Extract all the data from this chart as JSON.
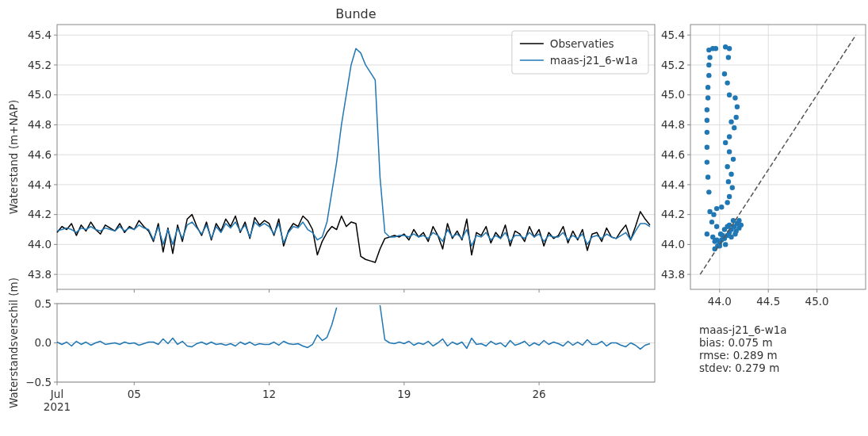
{
  "chart_data": [
    {
      "type": "line",
      "title": "Bunde",
      "ylabel": "Waterstand (m+NAP)",
      "legend": "top right",
      "grid": "y",
      "tick_labels": "y",
      "xlim": [
        "2021-07-01",
        "2021-08-01"
      ],
      "xticks": [
        {
          "value": "2021-07-01",
          "label": null
        },
        {
          "value": "2021-07-05",
          "label": null
        },
        {
          "value": "2021-07-12",
          "label": null
        },
        {
          "value": "2021-07-19",
          "label": null
        },
        {
          "value": "2021-07-26",
          "label": null
        }
      ],
      "ylim": [
        43.7,
        45.47
      ],
      "yticks": [
        43.8,
        {
          "value": 44.0,
          "label": "44.0"
        },
        44.2,
        44.4,
        44.6,
        44.8,
        {
          "value": 45.0,
          "label": "45.0"
        },
        45.2,
        45.4
      ],
      "x": [
        "2021-07-01T00:00",
        "2021-07-01T06:00",
        "2021-07-01T12:00",
        "2021-07-01T18:00",
        "2021-07-02T00:00",
        "2021-07-02T06:00",
        "2021-07-02T12:00",
        "2021-07-02T18:00",
        "2021-07-03T00:00",
        "2021-07-03T06:00",
        "2021-07-03T12:00",
        "2021-07-03T18:00",
        "2021-07-04T00:00",
        "2021-07-04T06:00",
        "2021-07-04T12:00",
        "2021-07-04T18:00",
        "2021-07-05T00:00",
        "2021-07-05T06:00",
        "2021-07-05T12:00",
        "2021-07-05T18:00",
        "2021-07-06T00:00",
        "2021-07-06T06:00",
        "2021-07-06T12:00",
        "2021-07-06T18:00",
        "2021-07-07T00:00",
        "2021-07-07T06:00",
        "2021-07-07T12:00",
        "2021-07-07T18:00",
        "2021-07-08T00:00",
        "2021-07-08T06:00",
        "2021-07-08T12:00",
        "2021-07-08T18:00",
        "2021-07-09T00:00",
        "2021-07-09T06:00",
        "2021-07-09T12:00",
        "2021-07-09T18:00",
        "2021-07-10T00:00",
        "2021-07-10T06:00",
        "2021-07-10T12:00",
        "2021-07-10T18:00",
        "2021-07-11T00:00",
        "2021-07-11T06:00",
        "2021-07-11T12:00",
        "2021-07-11T18:00",
        "2021-07-12T00:00",
        "2021-07-12T06:00",
        "2021-07-12T12:00",
        "2021-07-12T18:00",
        "2021-07-13T00:00",
        "2021-07-13T06:00",
        "2021-07-13T12:00",
        "2021-07-13T18:00",
        "2021-07-14T00:00",
        "2021-07-14T06:00",
        "2021-07-14T12:00",
        "2021-07-14T18:00",
        "2021-07-15T00:00",
        "2021-07-15T06:00",
        "2021-07-15T12:00",
        "2021-07-15T18:00",
        "2021-07-16T00:00",
        "2021-07-16T06:00",
        "2021-07-16T12:00",
        "2021-07-16T18:00",
        "2021-07-17T00:00",
        "2021-07-17T06:00",
        "2021-07-17T12:00",
        "2021-07-17T18:00",
        "2021-07-18T00:00",
        "2021-07-18T06:00",
        "2021-07-18T12:00",
        "2021-07-18T18:00",
        "2021-07-19T00:00",
        "2021-07-19T06:00",
        "2021-07-19T12:00",
        "2021-07-19T18:00",
        "2021-07-20T00:00",
        "2021-07-20T06:00",
        "2021-07-20T12:00",
        "2021-07-20T18:00",
        "2021-07-21T00:00",
        "2021-07-21T06:00",
        "2021-07-21T12:00",
        "2021-07-21T18:00",
        "2021-07-22T00:00",
        "2021-07-22T06:00",
        "2021-07-22T12:00",
        "2021-07-22T18:00",
        "2021-07-23T00:00",
        "2021-07-23T06:00",
        "2021-07-23T12:00",
        "2021-07-23T18:00",
        "2021-07-24T00:00",
        "2021-07-24T06:00",
        "2021-07-24T12:00",
        "2021-07-24T18:00",
        "2021-07-25T00:00",
        "2021-07-25T06:00",
        "2021-07-25T12:00",
        "2021-07-25T18:00",
        "2021-07-26T00:00",
        "2021-07-26T06:00",
        "2021-07-26T12:00",
        "2021-07-26T18:00",
        "2021-07-27T00:00",
        "2021-07-27T06:00",
        "2021-07-27T12:00",
        "2021-07-27T18:00",
        "2021-07-28T00:00",
        "2021-07-28T06:00",
        "2021-07-28T12:00",
        "2021-07-28T18:00",
        "2021-07-29T00:00",
        "2021-07-29T06:00",
        "2021-07-29T12:00",
        "2021-07-29T18:00",
        "2021-07-30T00:00",
        "2021-07-30T06:00",
        "2021-07-30T12:00",
        "2021-07-30T18:00",
        "2021-07-31T00:00",
        "2021-07-31T06:00",
        "2021-07-31T12:00",
        "2021-07-31T18:00"
      ],
      "series": [
        {
          "name": "Observaties",
          "color": "#000000",
          "values": [
            44.08,
            44.12,
            44.1,
            44.14,
            44.06,
            44.13,
            44.09,
            44.15,
            44.1,
            44.07,
            44.13,
            44.11,
            44.09,
            44.14,
            44.08,
            44.12,
            44.1,
            44.16,
            44.12,
            44.09,
            44.02,
            44.14,
            43.95,
            44.11,
            43.94,
            44.13,
            44.02,
            44.17,
            44.2,
            44.12,
            44.06,
            44.15,
            44.03,
            44.14,
            44.09,
            44.17,
            44.12,
            44.19,
            44.08,
            44.15,
            44.04,
            44.18,
            44.13,
            44.16,
            44.14,
            44.06,
            44.17,
            43.99,
            44.09,
            44.14,
            44.12,
            44.19,
            44.16,
            44.1,
            43.93,
            44.02,
            44.08,
            44.12,
            44.1,
            44.19,
            44.12,
            44.15,
            44.14,
            43.92,
            43.9,
            43.89,
            43.88,
            43.97,
            44.04,
            44.05,
            44.06,
            44.05,
            44.07,
            44.03,
            44.1,
            44.05,
            44.08,
            44.02,
            44.12,
            44.06,
            43.97,
            44.14,
            44.04,
            44.09,
            44.03,
            44.17,
            43.93,
            44.08,
            44.06,
            44.12,
            44.01,
            44.08,
            44.04,
            44.13,
            43.99,
            44.09,
            44.07,
            44.02,
            44.12,
            44.05,
            44.1,
            43.99,
            44.08,
            44.04,
            44.06,
            44.12,
            44.01,
            44.09,
            44.03,
            44.1,
            43.96,
            44.07,
            44.08,
            44.02,
            44.11,
            44.05,
            44.04,
            44.09,
            44.13,
            44.03,
            44.12,
            44.22,
            44.17,
            44.13
          ]
        },
        {
          "name": "maas-j21_6-w1a",
          "color": "#1f77b4",
          "values": [
            44.09,
            44.1,
            44.11,
            44.1,
            44.08,
            44.11,
            44.1,
            44.12,
            44.1,
            44.09,
            44.11,
            44.1,
            44.09,
            44.12,
            44.09,
            44.11,
            44.1,
            44.13,
            44.11,
            44.1,
            44.03,
            44.12,
            44.0,
            44.1,
            44.0,
            44.11,
            44.04,
            44.13,
            44.15,
            44.11,
            44.07,
            44.13,
            44.04,
            44.12,
            44.08,
            44.14,
            44.11,
            44.15,
            44.09,
            44.13,
            44.05,
            44.15,
            44.12,
            44.14,
            44.12,
            44.07,
            44.14,
            44.01,
            44.08,
            44.12,
            44.11,
            44.15,
            44.1,
            44.08,
            44.03,
            44.05,
            44.15,
            44.35,
            44.55,
            44.8,
            45.0,
            45.2,
            45.31,
            45.28,
            45.2,
            45.15,
            45.1,
            44.45,
            44.08,
            44.05,
            44.05,
            44.06,
            44.06,
            44.05,
            44.07,
            44.05,
            44.06,
            44.04,
            44.08,
            44.06,
            44.02,
            44.1,
            44.05,
            44.07,
            44.04,
            44.1,
            43.99,
            44.06,
            44.05,
            44.08,
            44.03,
            44.06,
            44.04,
            44.08,
            44.02,
            44.06,
            44.06,
            44.04,
            44.08,
            44.05,
            44.07,
            44.02,
            44.06,
            44.05,
            44.05,
            44.08,
            44.03,
            44.06,
            44.04,
            44.07,
            44.0,
            44.05,
            44.06,
            44.04,
            44.07,
            44.05,
            44.04,
            44.06,
            44.08,
            44.03,
            44.09,
            44.14,
            44.14,
            44.12
          ]
        }
      ]
    },
    {
      "type": "line",
      "ylabel": "Waterstandsverschil (m)",
      "grid": "y",
      "xlim": [
        "2021-07-01",
        "2021-08-01"
      ],
      "xticks": [
        {
          "value": "2021-07-01",
          "label": "Jul\n2021"
        },
        {
          "value": "2021-07-05",
          "label": "05"
        },
        {
          "value": "2021-07-12",
          "label": "12"
        },
        {
          "value": "2021-07-19",
          "label": "19"
        },
        {
          "value": "2021-07-26",
          "label": "26"
        }
      ],
      "ylim": [
        -0.5,
        0.5
      ],
      "yticks": [
        {
          "value": -0.5,
          "label": "−0.5"
        },
        {
          "value": 0,
          "label": "0.0"
        },
        0.5
      ],
      "x": [
        "2021-07-01T00:00",
        "2021-07-01T06:00",
        "2021-07-01T12:00",
        "2021-07-01T18:00",
        "2021-07-02T00:00",
        "2021-07-02T06:00",
        "2021-07-02T12:00",
        "2021-07-02T18:00",
        "2021-07-03T00:00",
        "2021-07-03T06:00",
        "2021-07-03T12:00",
        "2021-07-03T18:00",
        "2021-07-04T00:00",
        "2021-07-04T06:00",
        "2021-07-04T12:00",
        "2021-07-04T18:00",
        "2021-07-05T00:00",
        "2021-07-05T06:00",
        "2021-07-05T12:00",
        "2021-07-05T18:00",
        "2021-07-06T00:00",
        "2021-07-06T06:00",
        "2021-07-06T12:00",
        "2021-07-06T18:00",
        "2021-07-07T00:00",
        "2021-07-07T06:00",
        "2021-07-07T12:00",
        "2021-07-07T18:00",
        "2021-07-08T00:00",
        "2021-07-08T06:00",
        "2021-07-08T12:00",
        "2021-07-08T18:00",
        "2021-07-09T00:00",
        "2021-07-09T06:00",
        "2021-07-09T12:00",
        "2021-07-09T18:00",
        "2021-07-10T00:00",
        "2021-07-10T06:00",
        "2021-07-10T12:00",
        "2021-07-10T18:00",
        "2021-07-11T00:00",
        "2021-07-11T06:00",
        "2021-07-11T12:00",
        "2021-07-11T18:00",
        "2021-07-12T00:00",
        "2021-07-12T06:00",
        "2021-07-12T12:00",
        "2021-07-12T18:00",
        "2021-07-13T00:00",
        "2021-07-13T06:00",
        "2021-07-13T12:00",
        "2021-07-13T18:00",
        "2021-07-14T00:00",
        "2021-07-14T06:00",
        "2021-07-14T12:00",
        "2021-07-14T18:00",
        "2021-07-15T00:00",
        "2021-07-15T06:00",
        "2021-07-15T12:00",
        "2021-07-15T18:00",
        "2021-07-16T00:00",
        "2021-07-16T06:00",
        "2021-07-16T12:00",
        "2021-07-16T18:00",
        "2021-07-17T00:00",
        "2021-07-17T06:00",
        "2021-07-17T12:00",
        "2021-07-17T18:00",
        "2021-07-18T00:00",
        "2021-07-18T06:00",
        "2021-07-18T12:00",
        "2021-07-18T18:00",
        "2021-07-19T00:00",
        "2021-07-19T06:00",
        "2021-07-19T12:00",
        "2021-07-19T18:00",
        "2021-07-20T00:00",
        "2021-07-20T06:00",
        "2021-07-20T12:00",
        "2021-07-20T18:00",
        "2021-07-21T00:00",
        "2021-07-21T06:00",
        "2021-07-21T12:00",
        "2021-07-21T18:00",
        "2021-07-22T00:00",
        "2021-07-22T06:00",
        "2021-07-22T12:00",
        "2021-07-22T18:00",
        "2021-07-23T00:00",
        "2021-07-23T06:00",
        "2021-07-23T12:00",
        "2021-07-23T18:00",
        "2021-07-24T00:00",
        "2021-07-24T06:00",
        "2021-07-24T12:00",
        "2021-07-24T18:00",
        "2021-07-25T00:00",
        "2021-07-25T06:00",
        "2021-07-25T12:00",
        "2021-07-25T18:00",
        "2021-07-26T00:00",
        "2021-07-26T06:00",
        "2021-07-26T12:00",
        "2021-07-26T18:00",
        "2021-07-27T00:00",
        "2021-07-27T06:00",
        "2021-07-27T12:00",
        "2021-07-27T18:00",
        "2021-07-28T00:00",
        "2021-07-28T06:00",
        "2021-07-28T12:00",
        "2021-07-28T18:00",
        "2021-07-29T00:00",
        "2021-07-29T06:00",
        "2021-07-29T12:00",
        "2021-07-29T18:00",
        "2021-07-30T00:00",
        "2021-07-30T06:00",
        "2021-07-30T12:00",
        "2021-07-30T18:00",
        "2021-07-31T00:00",
        "2021-07-31T06:00",
        "2021-07-31T12:00",
        "2021-07-31T18:00"
      ],
      "series": [
        {
          "color": "#1f77b4",
          "values": [
            0.01,
            -0.02,
            0.01,
            -0.04,
            0.02,
            -0.02,
            0.01,
            -0.03,
            0,
            0.02,
            -0.02,
            -0.01,
            0,
            -0.02,
            0.01,
            -0.01,
            0,
            -0.03,
            -0.01,
            0.01,
            0.01,
            -0.02,
            0.05,
            -0.01,
            0.06,
            -0.02,
            0.02,
            -0.04,
            -0.05,
            -0.01,
            0.01,
            -0.02,
            0.01,
            -0.02,
            -0.01,
            -0.03,
            -0.01,
            -0.04,
            0.01,
            -0.02,
            0.01,
            -0.03,
            -0.01,
            -0.02,
            -0.02,
            0.01,
            -0.03,
            0.02,
            -0.01,
            -0.02,
            -0.01,
            -0.04,
            -0.06,
            -0.02,
            0.1,
            0.03,
            0.07,
            0.23,
            0.45,
            null,
            null,
            null,
            null,
            null,
            null,
            null,
            null,
            0.48,
            0.04,
            0,
            -0.01,
            0.01,
            -0.01,
            0.02,
            -0.03,
            0,
            -0.02,
            0.02,
            -0.04,
            0,
            0.05,
            -0.04,
            0.01,
            -0.02,
            0.01,
            -0.07,
            0.06,
            -0.02,
            -0.01,
            -0.04,
            0.02,
            -0.02,
            0,
            -0.05,
            0.03,
            -0.03,
            -0.01,
            0.02,
            -0.04,
            0,
            -0.03,
            0.03,
            -0.02,
            0.01,
            -0.01,
            -0.04,
            0.02,
            -0.03,
            0.01,
            -0.03,
            0.04,
            -0.02,
            -0.02,
            0.02,
            -0.04,
            0,
            0,
            -0.03,
            -0.05,
            0,
            -0.03,
            -0.08,
            -0.03,
            -0.01
          ]
        }
      ]
    },
    {
      "type": "scatter",
      "grid": true,
      "xlim": [
        43.7,
        45.5
      ],
      "xticks": [
        {
          "value": 44.0,
          "label": "44.0"
        },
        44.5,
        {
          "value": 45.0,
          "label": "45.0"
        }
      ],
      "ylim": [
        43.7,
        45.47
      ],
      "yticks": [
        43.8,
        {
          "value": 44.0,
          "label": "44.0"
        },
        44.2,
        44.4,
        44.6,
        44.8,
        {
          "value": 45.0,
          "label": "45.0"
        },
        45.2,
        45.4
      ],
      "annotations": [
        "maas-j21_6-w1a",
        "bias: 0.075 m",
        "rmse: 0.289 m",
        "stdev: 0.279 m"
      ],
      "series": [
        {
          "type": "scatter",
          "color": "#1f77b4",
          "marker": "circle",
          "x": [
            43.9,
            43.89,
            43.88,
            43.87,
            43.87,
            43.87,
            43.87,
            43.87,
            43.88,
            43.88,
            43.89,
            43.89,
            43.9,
            43.89,
            43.93,
            43.96,
            44.06,
            44.1,
            44.09,
            44.05,
            44.08,
            44.1,
            44.16,
            44.18,
            44.17,
            44.12,
            44.15,
            44.1,
            44.06,
            44.1,
            44.14,
            44.08,
            44.12,
            44.09,
            44.13,
            44.1,
            44.08,
            44.02,
            43.97,
            43.94,
            43.92,
            43.97,
            43.87,
            43.95,
            43.98,
            44.0,
            44.02,
            44.05,
            44.08,
            44.1,
            44.12,
            44.15,
            44.18,
            44.2,
            44.17,
            44.12,
            44.06,
            44.0,
            43.97,
            44.01,
            44.05,
            44.1,
            44.14,
            44.08,
            44.03,
            43.93,
            43.95,
            44.2,
            44.16,
            44.22
          ],
          "values": [
            44.22,
            44.35,
            44.45,
            44.55,
            44.65,
            44.75,
            44.83,
            44.9,
            44.98,
            45.05,
            45.13,
            45.2,
            45.25,
            45.3,
            45.31,
            45.31,
            45.32,
            45.31,
            45.25,
            45.14,
            45.08,
            45.0,
            44.98,
            44.92,
            44.85,
            44.82,
            44.78,
            44.72,
            44.68,
            44.62,
            44.57,
            44.52,
            44.47,
            44.42,
            44.38,
            44.32,
            44.28,
            44.25,
            44.24,
            44.2,
            44.15,
            44.12,
            44.07,
            43.97,
            43.99,
            44.01,
            44.03,
            44.04,
            44.06,
            44.08,
            44.1,
            44.12,
            44.14,
            44.16,
            44.09,
            44.05,
            44.0,
            43.99,
            44.03,
            44.07,
            44.1,
            44.13,
            44.16,
            44.12,
            44.06,
            44.05,
            44.02,
            44.11,
            44.07,
            44.13
          ]
        },
        {
          "type": "line",
          "color": "#555555",
          "line_style": "dashed",
          "x": [
            43.8,
            45.4
          ],
          "values": [
            43.8,
            45.4
          ]
        }
      ]
    }
  ]
}
